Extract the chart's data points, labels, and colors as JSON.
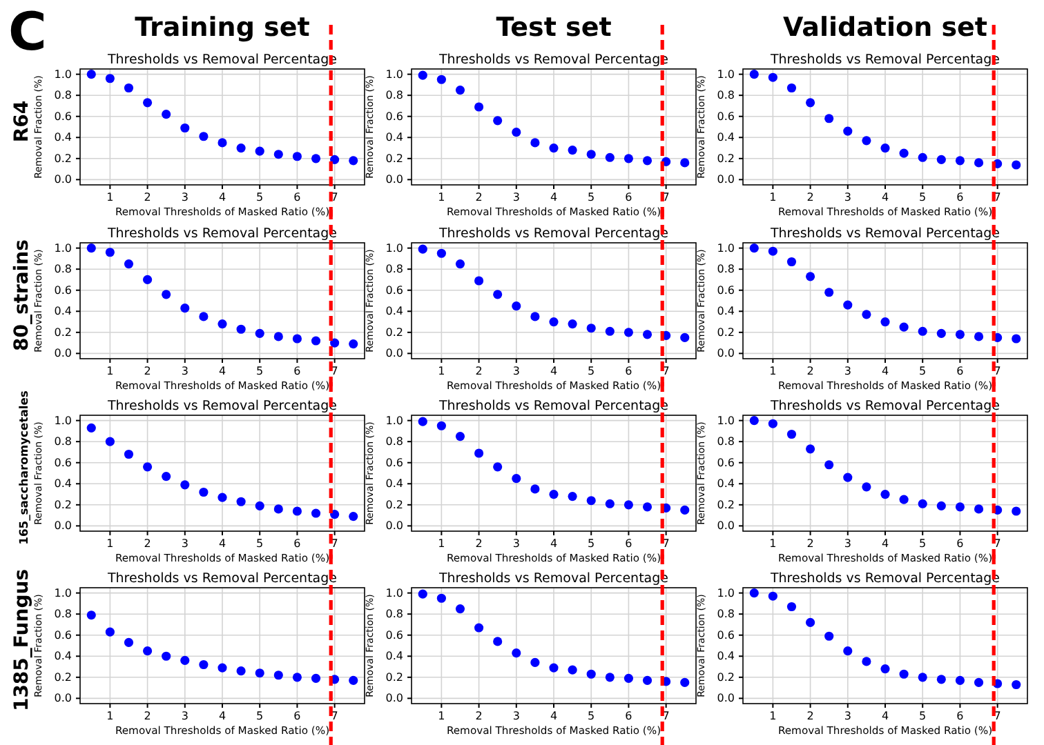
{
  "chart_data": [
    {
      "type": "scatter",
      "title": "Thresholds vs Removal Percentage",
      "xlabel": "Removal Thresholds of Masked Ratio (%)",
      "ylabel": "Removal Fraction  (%)",
      "annotations": [
        "C",
        "Training set",
        "R64"
      ],
      "x": [
        0.5,
        1,
        1.5,
        2,
        2.5,
        3,
        3.5,
        4,
        4.5,
        5,
        5.5,
        6,
        6.5,
        7,
        7.5
      ],
      "values": [
        1.0,
        0.96,
        0.87,
        0.73,
        0.62,
        0.49,
        0.41,
        0.35,
        0.3,
        0.27,
        0.24,
        0.22,
        0.2,
        0.19,
        0.18
      ],
      "color": "#0000ff",
      "xlim": [
        0.2,
        7.8
      ],
      "ylim": [
        -0.05,
        1.05
      ],
      "xticks": [
        1,
        2,
        3,
        4,
        5,
        6,
        7
      ],
      "yticks": [
        {
          "value": 0,
          "label": "0.0"
        },
        {
          "value": 0.2,
          "label": "0.2"
        },
        {
          "value": 0.4,
          "label": "0.4"
        },
        {
          "value": 0.6,
          "label": "0.6"
        },
        {
          "value": 0.8,
          "label": "0.8"
        },
        {
          "value": 1,
          "label": "1.0"
        }
      ],
      "grid": true,
      "marker": "circle",
      "ref_lines": [
        {
          "axis": "x",
          "value": 6.9,
          "color": "#ff0000",
          "line_style": "dashed"
        }
      ]
    },
    {
      "type": "scatter",
      "title": "Thresholds vs Removal Percentage",
      "xlabel": "Removal Thresholds of Masked Ratio (%)",
      "ylabel": "Removal Fraction  (%)",
      "annotations": [
        "Test set"
      ],
      "x": [
        0.5,
        1,
        1.5,
        2,
        2.5,
        3,
        3.5,
        4,
        4.5,
        5,
        5.5,
        6,
        6.5,
        7,
        7.5
      ],
      "values": [
        0.99,
        0.95,
        0.85,
        0.69,
        0.56,
        0.45,
        0.35,
        0.3,
        0.28,
        0.24,
        0.21,
        0.2,
        0.18,
        0.17,
        0.16
      ],
      "color": "#0000ff",
      "xlim": [
        0.2,
        7.8
      ],
      "ylim": [
        -0.05,
        1.05
      ],
      "xticks": [
        1,
        2,
        3,
        4,
        5,
        6,
        7
      ],
      "yticks": [
        {
          "value": 0,
          "label": "0.0"
        },
        {
          "value": 0.2,
          "label": "0.2"
        },
        {
          "value": 0.4,
          "label": "0.4"
        },
        {
          "value": 0.6,
          "label": "0.6"
        },
        {
          "value": 0.8,
          "label": "0.8"
        },
        {
          "value": 1,
          "label": "1.0"
        }
      ],
      "grid": true,
      "marker": "circle",
      "ref_lines": [
        {
          "axis": "x",
          "value": 6.9,
          "color": "#ff0000",
          "line_style": "dashed"
        }
      ]
    },
    {
      "type": "scatter",
      "title": "Thresholds vs Removal Percentage",
      "xlabel": "Removal Thresholds of Masked Ratio (%)",
      "ylabel": "Removal Fraction  (%)",
      "annotations": [
        "Validation set"
      ],
      "x": [
        0.5,
        1,
        1.5,
        2,
        2.5,
        3,
        3.5,
        4,
        4.5,
        5,
        5.5,
        6,
        6.5,
        7,
        7.5
      ],
      "values": [
        1.0,
        0.97,
        0.87,
        0.73,
        0.58,
        0.46,
        0.37,
        0.3,
        0.25,
        0.21,
        0.19,
        0.18,
        0.16,
        0.15,
        0.14
      ],
      "color": "#0000ff",
      "xlim": [
        0.2,
        7.8
      ],
      "ylim": [
        -0.05,
        1.05
      ],
      "xticks": [
        1,
        2,
        3,
        4,
        5,
        6,
        7
      ],
      "yticks": [
        {
          "value": 0,
          "label": "0.0"
        },
        {
          "value": 0.2,
          "label": "0.2"
        },
        {
          "value": 0.4,
          "label": "0.4"
        },
        {
          "value": 0.6,
          "label": "0.6"
        },
        {
          "value": 0.8,
          "label": "0.8"
        },
        {
          "value": 1,
          "label": "1.0"
        }
      ],
      "grid": true,
      "marker": "circle",
      "ref_lines": [
        {
          "axis": "x",
          "value": 6.9,
          "color": "#ff0000",
          "line_style": "dashed"
        }
      ]
    },
    {
      "type": "scatter",
      "title": "Thresholds vs Removal Percentage",
      "xlabel": "Removal Thresholds of Masked Ratio (%)",
      "ylabel": "Removal Fraction  (%)",
      "annotations": [
        "80_strains"
      ],
      "x": [
        0.5,
        1,
        1.5,
        2,
        2.5,
        3,
        3.5,
        4,
        4.5,
        5,
        5.5,
        6,
        6.5,
        7,
        7.5
      ],
      "values": [
        1.0,
        0.96,
        0.85,
        0.7,
        0.56,
        0.43,
        0.35,
        0.28,
        0.23,
        0.19,
        0.16,
        0.14,
        0.12,
        0.1,
        0.09
      ],
      "color": "#0000ff",
      "xlim": [
        0.2,
        7.8
      ],
      "ylim": [
        -0.05,
        1.05
      ],
      "xticks": [
        1,
        2,
        3,
        4,
        5,
        6,
        7
      ],
      "yticks": [
        {
          "value": 0,
          "label": "0.0"
        },
        {
          "value": 0.2,
          "label": "0.2"
        },
        {
          "value": 0.4,
          "label": "0.4"
        },
        {
          "value": 0.6,
          "label": "0.6"
        },
        {
          "value": 0.8,
          "label": "0.8"
        },
        {
          "value": 1,
          "label": "1.0"
        }
      ],
      "grid": true,
      "marker": "circle",
      "ref_lines": [
        {
          "axis": "x",
          "value": 6.9,
          "color": "#ff0000",
          "line_style": "dashed"
        }
      ]
    },
    {
      "type": "scatter",
      "title": "Thresholds vs Removal Percentage",
      "xlabel": "Removal Thresholds of Masked Ratio (%)",
      "ylabel": "Removal Fraction  (%)",
      "x": [
        0.5,
        1,
        1.5,
        2,
        2.5,
        3,
        3.5,
        4,
        4.5,
        5,
        5.5,
        6,
        6.5,
        7,
        7.5
      ],
      "values": [
        0.99,
        0.95,
        0.85,
        0.69,
        0.56,
        0.45,
        0.35,
        0.3,
        0.28,
        0.24,
        0.21,
        0.2,
        0.18,
        0.17,
        0.15
      ],
      "color": "#0000ff",
      "xlim": [
        0.2,
        7.8
      ],
      "ylim": [
        -0.05,
        1.05
      ],
      "xticks": [
        1,
        2,
        3,
        4,
        5,
        6,
        7
      ],
      "yticks": [
        {
          "value": 0,
          "label": "0.0"
        },
        {
          "value": 0.2,
          "label": "0.2"
        },
        {
          "value": 0.4,
          "label": "0.4"
        },
        {
          "value": 0.6,
          "label": "0.6"
        },
        {
          "value": 0.8,
          "label": "0.8"
        },
        {
          "value": 1,
          "label": "1.0"
        }
      ],
      "grid": true,
      "marker": "circle",
      "ref_lines": [
        {
          "axis": "x",
          "value": 6.9,
          "color": "#ff0000",
          "line_style": "dashed"
        }
      ]
    },
    {
      "type": "scatter",
      "title": "Thresholds vs Removal Percentage",
      "xlabel": "Removal Thresholds of Masked Ratio (%)",
      "ylabel": "Removal Fraction  (%)",
      "x": [
        0.5,
        1,
        1.5,
        2,
        2.5,
        3,
        3.5,
        4,
        4.5,
        5,
        5.5,
        6,
        6.5,
        7,
        7.5
      ],
      "values": [
        1.0,
        0.97,
        0.87,
        0.73,
        0.58,
        0.46,
        0.37,
        0.3,
        0.25,
        0.21,
        0.19,
        0.18,
        0.16,
        0.15,
        0.14
      ],
      "color": "#0000ff",
      "xlim": [
        0.2,
        7.8
      ],
      "ylim": [
        -0.05,
        1.05
      ],
      "xticks": [
        1,
        2,
        3,
        4,
        5,
        6,
        7
      ],
      "yticks": [
        {
          "value": 0,
          "label": "0.0"
        },
        {
          "value": 0.2,
          "label": "0.2"
        },
        {
          "value": 0.4,
          "label": "0.4"
        },
        {
          "value": 0.6,
          "label": "0.6"
        },
        {
          "value": 0.8,
          "label": "0.8"
        },
        {
          "value": 1,
          "label": "1.0"
        }
      ],
      "grid": true,
      "marker": "circle",
      "ref_lines": [
        {
          "axis": "x",
          "value": 6.9,
          "color": "#ff0000",
          "line_style": "dashed"
        }
      ]
    },
    {
      "type": "scatter",
      "title": "Thresholds vs Removal Percentage",
      "xlabel": "Removal Thresholds of Masked Ratio (%)",
      "ylabel": "Removal Fraction  (%)",
      "annotations": [
        "165_saccharomycetales"
      ],
      "x": [
        0.5,
        1,
        1.5,
        2,
        2.5,
        3,
        3.5,
        4,
        4.5,
        5,
        5.5,
        6,
        6.5,
        7,
        7.5
      ],
      "values": [
        0.93,
        0.8,
        0.68,
        0.56,
        0.47,
        0.39,
        0.32,
        0.27,
        0.23,
        0.19,
        0.16,
        0.14,
        0.12,
        0.11,
        0.09
      ],
      "color": "#0000ff",
      "xlim": [
        0.2,
        7.8
      ],
      "ylim": [
        -0.05,
        1.05
      ],
      "xticks": [
        1,
        2,
        3,
        4,
        5,
        6,
        7
      ],
      "yticks": [
        {
          "value": 0,
          "label": "0.0"
        },
        {
          "value": 0.2,
          "label": "0.2"
        },
        {
          "value": 0.4,
          "label": "0.4"
        },
        {
          "value": 0.6,
          "label": "0.6"
        },
        {
          "value": 0.8,
          "label": "0.8"
        },
        {
          "value": 1,
          "label": "1.0"
        }
      ],
      "grid": true,
      "marker": "circle",
      "ref_lines": [
        {
          "axis": "x",
          "value": 6.9,
          "color": "#ff0000",
          "line_style": "dashed"
        }
      ]
    },
    {
      "type": "scatter",
      "title": "Thresholds vs Removal Percentage",
      "xlabel": "Removal Thresholds of Masked Ratio (%)",
      "ylabel": "Removal Fraction  (%)",
      "x": [
        0.5,
        1,
        1.5,
        2,
        2.5,
        3,
        3.5,
        4,
        4.5,
        5,
        5.5,
        6,
        6.5,
        7,
        7.5
      ],
      "values": [
        0.99,
        0.95,
        0.85,
        0.69,
        0.56,
        0.45,
        0.35,
        0.3,
        0.28,
        0.24,
        0.21,
        0.2,
        0.18,
        0.17,
        0.15
      ],
      "color": "#0000ff",
      "xlim": [
        0.2,
        7.8
      ],
      "ylim": [
        -0.05,
        1.05
      ],
      "xticks": [
        1,
        2,
        3,
        4,
        5,
        6,
        7
      ],
      "yticks": [
        {
          "value": 0,
          "label": "0.0"
        },
        {
          "value": 0.2,
          "label": "0.2"
        },
        {
          "value": 0.4,
          "label": "0.4"
        },
        {
          "value": 0.6,
          "label": "0.6"
        },
        {
          "value": 0.8,
          "label": "0.8"
        },
        {
          "value": 1,
          "label": "1.0"
        }
      ],
      "grid": true,
      "marker": "circle",
      "ref_lines": [
        {
          "axis": "x",
          "value": 6.9,
          "color": "#ff0000",
          "line_style": "dashed"
        }
      ]
    },
    {
      "type": "scatter",
      "title": "Thresholds vs Removal Percentage",
      "xlabel": "Removal Thresholds of Masked Ratio (%)",
      "ylabel": "Removal Fraction  (%)",
      "x": [
        0.5,
        1,
        1.5,
        2,
        2.5,
        3,
        3.5,
        4,
        4.5,
        5,
        5.5,
        6,
        6.5,
        7,
        7.5
      ],
      "values": [
        1.0,
        0.97,
        0.87,
        0.73,
        0.58,
        0.46,
        0.37,
        0.3,
        0.25,
        0.21,
        0.19,
        0.18,
        0.16,
        0.15,
        0.14
      ],
      "color": "#0000ff",
      "xlim": [
        0.2,
        7.8
      ],
      "ylim": [
        -0.05,
        1.05
      ],
      "xticks": [
        1,
        2,
        3,
        4,
        5,
        6,
        7
      ],
      "yticks": [
        {
          "value": 0,
          "label": "0.0"
        },
        {
          "value": 0.2,
          "label": "0.2"
        },
        {
          "value": 0.4,
          "label": "0.4"
        },
        {
          "value": 0.6,
          "label": "0.6"
        },
        {
          "value": 0.8,
          "label": "0.8"
        },
        {
          "value": 1,
          "label": "1.0"
        }
      ],
      "grid": true,
      "marker": "circle",
      "ref_lines": [
        {
          "axis": "x",
          "value": 6.9,
          "color": "#ff0000",
          "line_style": "dashed"
        }
      ]
    },
    {
      "type": "scatter",
      "title": "Thresholds vs Removal Percentage",
      "xlabel": "Removal Thresholds of Masked Ratio (%)",
      "ylabel": "Removal Fraction  (%)",
      "annotations": [
        "1385_Fungus"
      ],
      "x": [
        0.5,
        1,
        1.5,
        2,
        2.5,
        3,
        3.5,
        4,
        4.5,
        5,
        5.5,
        6,
        6.5,
        7,
        7.5
      ],
      "values": [
        0.79,
        0.63,
        0.53,
        0.45,
        0.4,
        0.36,
        0.32,
        0.29,
        0.26,
        0.24,
        0.22,
        0.2,
        0.19,
        0.18,
        0.17
      ],
      "color": "#0000ff",
      "xlim": [
        0.2,
        7.8
      ],
      "ylim": [
        -0.05,
        1.05
      ],
      "xticks": [
        1,
        2,
        3,
        4,
        5,
        6,
        7
      ],
      "yticks": [
        {
          "value": 0,
          "label": "0.0"
        },
        {
          "value": 0.2,
          "label": "0.2"
        },
        {
          "value": 0.4,
          "label": "0.4"
        },
        {
          "value": 0.6,
          "label": "0.6"
        },
        {
          "value": 0.8,
          "label": "0.8"
        },
        {
          "value": 1,
          "label": "1.0"
        }
      ],
      "grid": true,
      "marker": "circle",
      "ref_lines": [
        {
          "axis": "x",
          "value": 6.9,
          "color": "#ff0000",
          "line_style": "dashed"
        }
      ]
    },
    {
      "type": "scatter",
      "title": "Thresholds vs Removal Percentage",
      "xlabel": "Removal Thresholds of Masked Ratio (%)",
      "ylabel": "Removal Fraction  (%)",
      "x": [
        0.5,
        1,
        1.5,
        2,
        2.5,
        3,
        3.5,
        4,
        4.5,
        5,
        5.5,
        6,
        6.5,
        7,
        7.5
      ],
      "values": [
        0.99,
        0.95,
        0.85,
        0.67,
        0.54,
        0.43,
        0.34,
        0.29,
        0.27,
        0.23,
        0.2,
        0.19,
        0.17,
        0.16,
        0.15
      ],
      "color": "#0000ff",
      "xlim": [
        0.2,
        7.8
      ],
      "ylim": [
        -0.05,
        1.05
      ],
      "xticks": [
        1,
        2,
        3,
        4,
        5,
        6,
        7
      ],
      "yticks": [
        {
          "value": 0,
          "label": "0.0"
        },
        {
          "value": 0.2,
          "label": "0.2"
        },
        {
          "value": 0.4,
          "label": "0.4"
        },
        {
          "value": 0.6,
          "label": "0.6"
        },
        {
          "value": 0.8,
          "label": "0.8"
        },
        {
          "value": 1,
          "label": "1.0"
        }
      ],
      "grid": true,
      "marker": "circle",
      "ref_lines": [
        {
          "axis": "x",
          "value": 6.9,
          "color": "#ff0000",
          "line_style": "dashed"
        }
      ]
    },
    {
      "type": "scatter",
      "title": "Thresholds vs Removal Percentage",
      "xlabel": "Removal Thresholds of Masked Ratio (%)",
      "ylabel": "Removal Fraction  (%)",
      "x": [
        0.5,
        1,
        1.5,
        2,
        2.5,
        3,
        3.5,
        4,
        4.5,
        5,
        5.5,
        6,
        6.5,
        7,
        7.5
      ],
      "values": [
        1.0,
        0.97,
        0.87,
        0.72,
        0.59,
        0.45,
        0.35,
        0.28,
        0.23,
        0.2,
        0.18,
        0.17,
        0.15,
        0.14,
        0.13
      ],
      "color": "#0000ff",
      "xlim": [
        0.2,
        7.8
      ],
      "ylim": [
        -0.05,
        1.05
      ],
      "xticks": [
        1,
        2,
        3,
        4,
        5,
        6,
        7
      ],
      "yticks": [
        {
          "value": 0,
          "label": "0.0"
        },
        {
          "value": 0.2,
          "label": "0.2"
        },
        {
          "value": 0.4,
          "label": "0.4"
        },
        {
          "value": 0.6,
          "label": "0.6"
        },
        {
          "value": 0.8,
          "label": "0.8"
        },
        {
          "value": 1,
          "label": "1.0"
        }
      ],
      "grid": true,
      "marker": "circle",
      "ref_lines": [
        {
          "axis": "x",
          "value": 6.9,
          "color": "#ff0000",
          "line_style": "dashed"
        }
      ]
    }
  ]
}
